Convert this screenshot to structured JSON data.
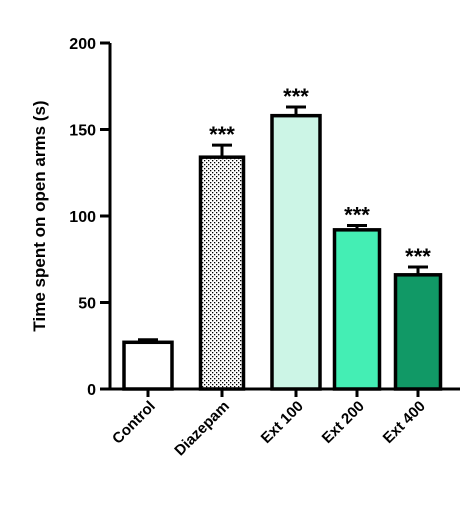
{
  "chart_data": {
    "type": "bar",
    "title": "",
    "xlabel": "",
    "ylabel": "Time spent on open arms (s)",
    "ylim": [
      0,
      200
    ],
    "yticks": [
      0,
      50,
      100,
      150,
      200
    ],
    "categories": [
      "Control",
      "Diazepam",
      "Ext 100",
      "Ext 200",
      "Ext 400"
    ],
    "values": [
      27,
      134,
      158,
      92,
      66
    ],
    "errors": [
      1.5,
      7,
      5,
      2.5,
      4.5
    ],
    "annotations": [
      "",
      "***",
      "***",
      "***",
      "***"
    ],
    "colors": [
      "#ffffff",
      "dotted",
      "#ccf5e6",
      "#44eeb4",
      "#119966"
    ],
    "grid": false,
    "legend": "none"
  }
}
